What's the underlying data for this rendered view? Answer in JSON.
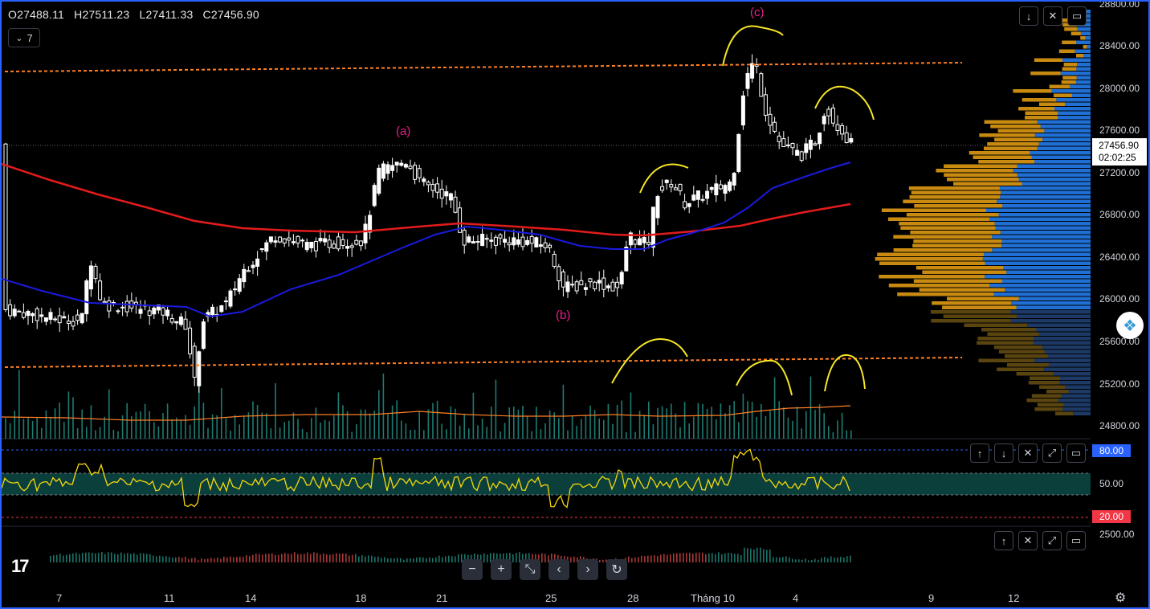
{
  "ohlc": {
    "open": "O27488.11",
    "high": "H27511.23",
    "low": "L27411.33",
    "close": "C27456.90"
  },
  "indicator_count": "7",
  "price_axis": [
    "28800.00",
    "28400.00",
    "28000.00",
    "27600.00",
    "27200.00",
    "26800.00",
    "26400.00",
    "26000.00",
    "25600.00",
    "25200.00",
    "24800.00"
  ],
  "current_price": "27456.90",
  "countdown": "02:02:25",
  "rsi": {
    "upper": "80.00",
    "mid": "50.00",
    "lower": "20.00"
  },
  "macd_label": "2500.00",
  "time_axis": [
    "7",
    "11",
    "14",
    "18",
    "21",
    "25",
    "28",
    "Tháng 10",
    "4",
    "9",
    "12"
  ],
  "waves": {
    "a": "(a)",
    "b": "(b)",
    "c": "(c)"
  },
  "nav": {
    "zoom_out": "−",
    "zoom_in": "+",
    "reset": "⤡",
    "left": "‹",
    "right": "›",
    "refresh": "↻"
  },
  "pane_buttons": {
    "down": "↓",
    "collapse": "✕",
    "maximize": "⤢",
    "restore": "▭",
    "up": "↑",
    "close": "✕"
  },
  "colors": {
    "bg": "#000000",
    "up": "#ffffff",
    "down": "#ffffff",
    "ma_red": "#e31b1b",
    "ma_blue": "#1a1ae0",
    "volume": "#26a69a",
    "rsi": "#f5d90a",
    "orange": "#ff7f27",
    "annotation": "#f5e625"
  },
  "icons": {
    "gpt": "chatgpt-icon",
    "logo": "tradingview-logo",
    "settings": "gear-icon"
  }
}
